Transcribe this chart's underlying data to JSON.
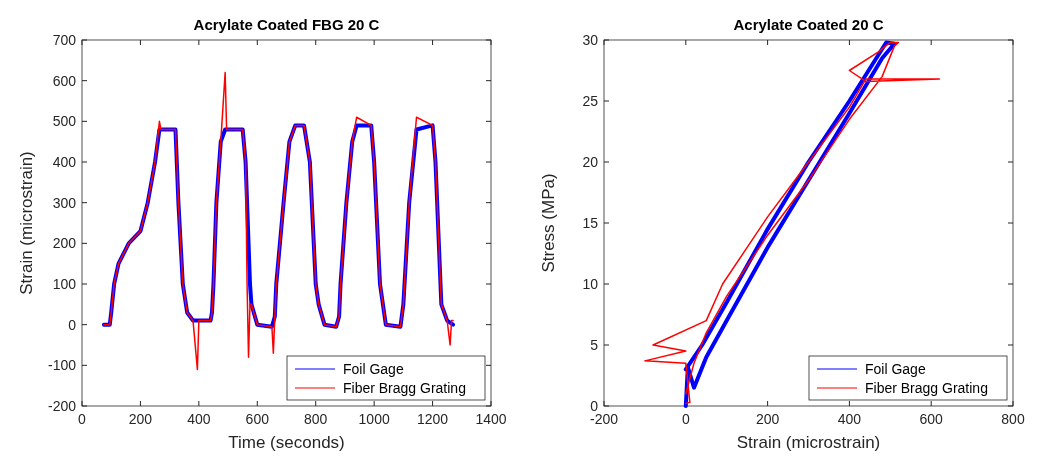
{
  "chart_data": [
    {
      "type": "line",
      "title": "Acrylate Coated FBG 20 C",
      "xlabel": "Time (seconds)",
      "ylabel": "Strain (microstrain)",
      "xlim": [
        0,
        1400
      ],
      "xticks": [
        0,
        200,
        400,
        600,
        800,
        1000,
        1200,
        1400
      ],
      "ylim": [
        -200,
        700
      ],
      "yticks": [
        -200,
        -100,
        0,
        100,
        200,
        300,
        400,
        500,
        600,
        700
      ],
      "legend": "bottom right",
      "line_style": "solid",
      "grid": false,
      "series": [
        {
          "name": "Foil Gage",
          "color": "#0000ff",
          "x": [
            75,
            95,
            100,
            110,
            125,
            160,
            200,
            225,
            250,
            265,
            270,
            320,
            330,
            345,
            360,
            380,
            440,
            445,
            450,
            460,
            475,
            490,
            550,
            560,
            575,
            580,
            600,
            650,
            660,
            665,
            690,
            710,
            730,
            760,
            780,
            800,
            810,
            830,
            870,
            880,
            885,
            905,
            925,
            940,
            990,
            1000,
            1020,
            1040,
            1090,
            1100,
            1120,
            1145,
            1200,
            1210,
            1230,
            1250,
            1270
          ],
          "values": [
            0,
            0,
            30,
            100,
            150,
            200,
            230,
            300,
            400,
            480,
            480,
            480,
            300,
            100,
            30,
            10,
            10,
            30,
            100,
            300,
            450,
            480,
            480,
            400,
            100,
            50,
            0,
            -5,
            20,
            100,
            300,
            450,
            490,
            490,
            400,
            100,
            50,
            0,
            -5,
            20,
            100,
            300,
            450,
            490,
            490,
            400,
            100,
            0,
            -5,
            50,
            300,
            480,
            490,
            400,
            50,
            10,
            0
          ]
        },
        {
          "name": "Fiber Bragg Grating",
          "color": "#ff0000",
          "x": [
            75,
            95,
            100,
            110,
            125,
            160,
            200,
            225,
            250,
            265,
            270,
            320,
            330,
            345,
            360,
            380,
            395,
            400,
            440,
            445,
            450,
            460,
            475,
            490,
            495,
            550,
            560,
            565,
            570,
            575,
            580,
            600,
            650,
            655,
            660,
            665,
            690,
            710,
            730,
            760,
            780,
            800,
            810,
            830,
            870,
            880,
            885,
            905,
            925,
            940,
            990,
            1000,
            1020,
            1040,
            1090,
            1100,
            1120,
            1145,
            1200,
            1210,
            1230,
            1250,
            1260,
            1265,
            1270
          ],
          "values": [
            0,
            0,
            30,
            100,
            150,
            200,
            230,
            300,
            400,
            500,
            480,
            480,
            300,
            100,
            30,
            10,
            -110,
            10,
            10,
            30,
            100,
            300,
            450,
            620,
            480,
            480,
            400,
            100,
            -80,
            50,
            50,
            0,
            -5,
            -70,
            20,
            100,
            300,
            450,
            490,
            490,
            400,
            100,
            50,
            0,
            -5,
            20,
            100,
            300,
            450,
            510,
            490,
            400,
            100,
            0,
            -5,
            50,
            300,
            510,
            490,
            400,
            50,
            10,
            -50,
            10,
            10
          ]
        }
      ]
    },
    {
      "type": "line",
      "title": "Acrylate Coated 20 C",
      "xlabel": "Strain (microstrain)",
      "ylabel": "Stress (MPa)",
      "xlim": [
        -200,
        800
      ],
      "xticks": [
        -200,
        0,
        200,
        400,
        600,
        800
      ],
      "ylim": [
        0,
        30
      ],
      "yticks": [
        0,
        5,
        10,
        15,
        20,
        25,
        30
      ],
      "legend": "bottom right",
      "line_style": "solid",
      "grid": false,
      "series": [
        {
          "name": "Foil Gage",
          "color": "#0000ff",
          "x": [
            0,
            5,
            20,
            50,
            100,
            200,
            300,
            400,
            480,
            510,
            490,
            400,
            300,
            200,
            100,
            40,
            0
          ],
          "values": [
            0,
            3.2,
            1.5,
            4,
            7,
            13,
            18.5,
            24,
            28.5,
            29.7,
            29.8,
            25,
            20,
            14.5,
            8.5,
            5,
            3
          ]
        },
        {
          "name": "Fiber Bragg Grating",
          "color": "#ff0000",
          "x": [
            0,
            10,
            0,
            -100,
            0,
            -80,
            50,
            90,
            150,
            200,
            300,
            400,
            440,
            620,
            440,
            400,
            470,
            500,
            520,
            510,
            480,
            400,
            300,
            200,
            100,
            50,
            20,
            0
          ],
          "values": [
            0.2,
            0.3,
            3.5,
            3.7,
            4.5,
            5,
            7,
            10,
            13,
            15.5,
            20,
            24.5,
            26.8,
            26.8,
            26.6,
            27.5,
            29,
            29.8,
            29.8,
            29.5,
            27,
            23.5,
            18.5,
            14,
            9,
            6,
            3.5,
            1
          ]
        }
      ]
    }
  ]
}
